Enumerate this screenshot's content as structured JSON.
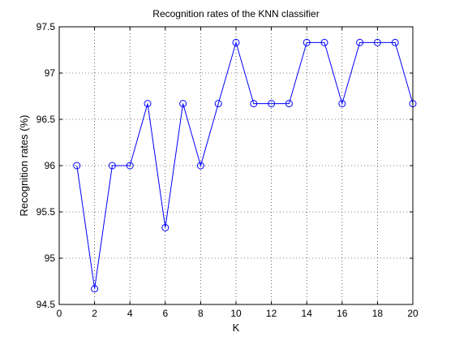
{
  "chart_data": {
    "type": "line",
    "title": "Recognition rates of the KNN classifier",
    "xlabel": "K",
    "ylabel": "Recognition rates (%)",
    "xlim": [
      0,
      20
    ],
    "ylim": [
      94.5,
      97.5
    ],
    "xticks": [
      0,
      2,
      4,
      6,
      8,
      10,
      12,
      14,
      16,
      18,
      20
    ],
    "yticks": [
      94.5,
      95,
      95.5,
      96,
      96.5,
      97,
      97.5
    ],
    "xtick_labels": [
      "0",
      "2",
      "4",
      "6",
      "8",
      "10",
      "12",
      "14",
      "16",
      "18",
      "20"
    ],
    "ytick_labels": [
      "94.5",
      "95",
      "95.5",
      "96",
      "96.5",
      "97",
      "97.5"
    ],
    "grid": true,
    "marker": "circle",
    "series_color": "#0000ff",
    "series": [
      {
        "x": [
          1,
          2,
          3,
          4,
          5,
          6,
          7,
          8,
          9,
          10,
          11,
          12,
          13,
          14,
          15,
          16,
          17,
          18,
          19,
          20
        ],
        "values": [
          96.0,
          94.67,
          96.0,
          96.0,
          96.67,
          95.33,
          96.67,
          96.0,
          96.67,
          97.33,
          96.67,
          96.67,
          96.67,
          97.33,
          97.33,
          96.67,
          97.33,
          97.33,
          97.33,
          96.67
        ]
      }
    ]
  }
}
